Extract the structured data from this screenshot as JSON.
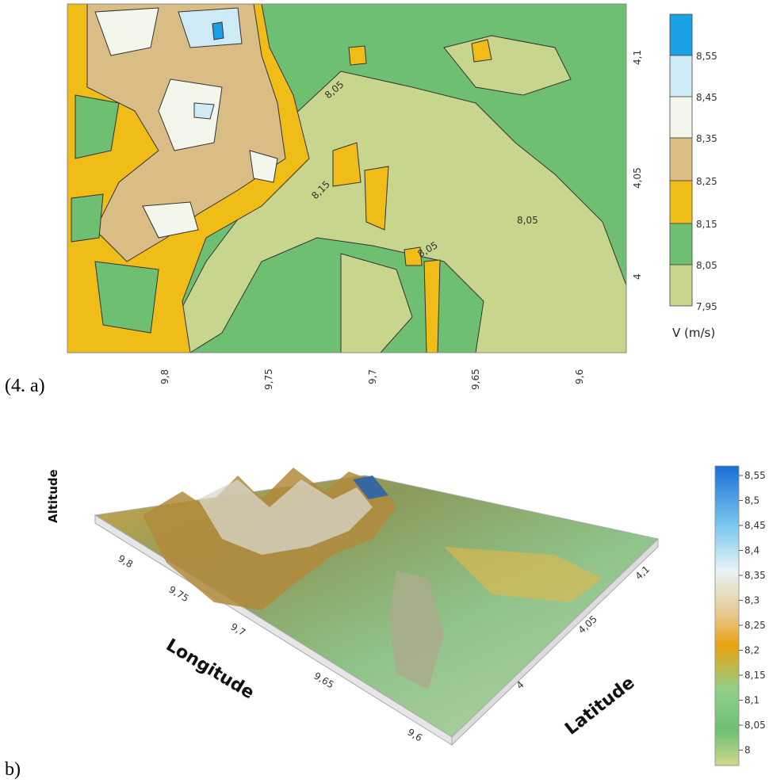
{
  "captions": {
    "a": "(4. a)",
    "b": "b)"
  },
  "colors": {
    "7.95": "#c8d58c",
    "8.05": "#6fbf73",
    "8.15": "#f0bd18",
    "8.25": "#d9bd84",
    "8.35": "#f3f6ea",
    "8.45": "#cdeaf5",
    "8.55": "#19a0e6"
  },
  "chart_data": [
    {
      "type": "heatmap",
      "subtype": "contour-map",
      "x_ticks": [
        "9,8",
        "9,75",
        "9,7",
        "9,65",
        "9,6"
      ],
      "y_ticks": [
        "4,1",
        "4,05",
        "4"
      ],
      "contour_labels": [
        "8,05",
        "8,15",
        "8,05",
        "8,05"
      ],
      "legend": {
        "title": "V (m/s)",
        "levels": [
          "7,95",
          "8,05",
          "8,15",
          "8,25",
          "8,35",
          "8,45",
          "8,55"
        ]
      }
    },
    {
      "type": "heatmap",
      "subtype": "3d-surface",
      "axes": {
        "altitude_label": "Altitude",
        "longitude_label": "Longitude",
        "latitude_label": "Latitude"
      },
      "longitude_ticks": [
        "9,8",
        "9,75",
        "9,7",
        "9,65",
        "9,6"
      ],
      "latitude_ticks": [
        "4",
        "4,05",
        "4,1"
      ],
      "colorbar_ticks": [
        "8,55",
        "8,5",
        "8,45",
        "8,4",
        "8,35",
        "8,3",
        "8,25",
        "8,2",
        "8,15",
        "8,1",
        "8,05",
        "8"
      ]
    }
  ]
}
